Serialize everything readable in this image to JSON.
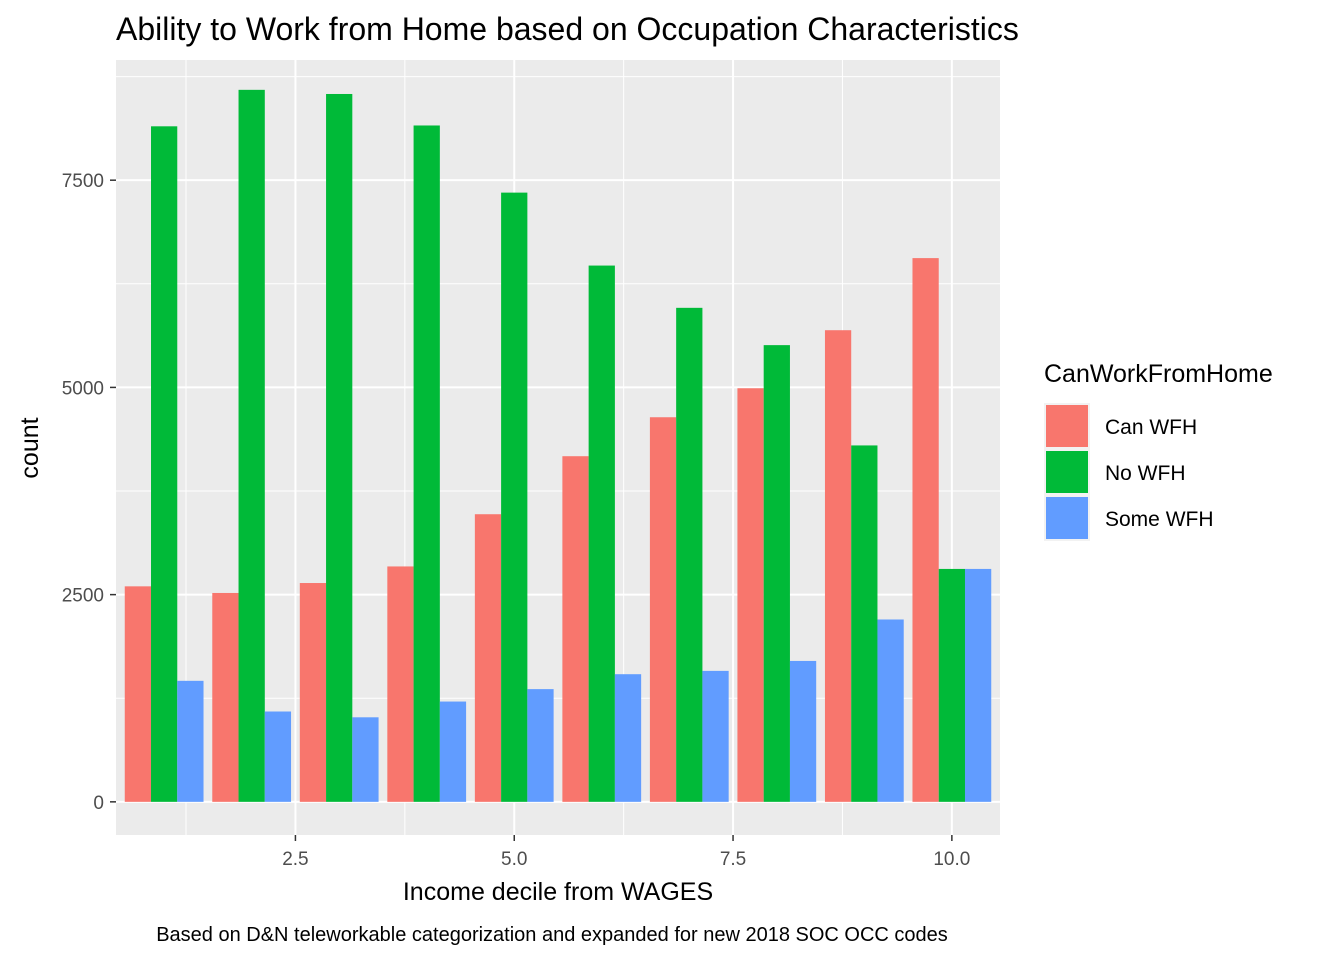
{
  "chart_data": {
    "type": "bar",
    "title": "Ability to Work from Home based on Occupation Characteristics",
    "xlabel": "Income decile from WAGES",
    "ylabel": "count",
    "caption": "Based on D&N teleworkable categorization and expanded for new 2018 SOC OCC codes",
    "x": [
      1,
      2,
      3,
      4,
      5,
      6,
      7,
      8,
      9,
      10
    ],
    "xlim": [
      0.45,
      10.55
    ],
    "ylim": [
      -400,
      8950
    ],
    "x_ticks": [
      2.5,
      5.0,
      7.5,
      10.0
    ],
    "x_tick_labels": [
      "2.5",
      "5.0",
      "7.5",
      "10.0"
    ],
    "y_ticks": [
      0,
      2500,
      5000,
      7500
    ],
    "y_tick_labels": [
      "0",
      "2500",
      "5000",
      "7500"
    ],
    "grid": true,
    "legend": {
      "title": "CanWorkFromHome",
      "position": "right"
    },
    "series": [
      {
        "name": "Can WFH",
        "color": "#F8766D",
        "values": [
          2600,
          2520,
          2640,
          2840,
          3470,
          4170,
          4640,
          4990,
          5690,
          6560
        ]
      },
      {
        "name": "No WFH",
        "color": "#00BA38",
        "values": [
          8150,
          8590,
          8540,
          8160,
          7350,
          6470,
          5960,
          5510,
          4300,
          2810
        ]
      },
      {
        "name": "Some WFH",
        "color": "#619CFF",
        "values": [
          1460,
          1090,
          1020,
          1210,
          1360,
          1540,
          1580,
          1700,
          2200,
          2810
        ]
      }
    ]
  }
}
